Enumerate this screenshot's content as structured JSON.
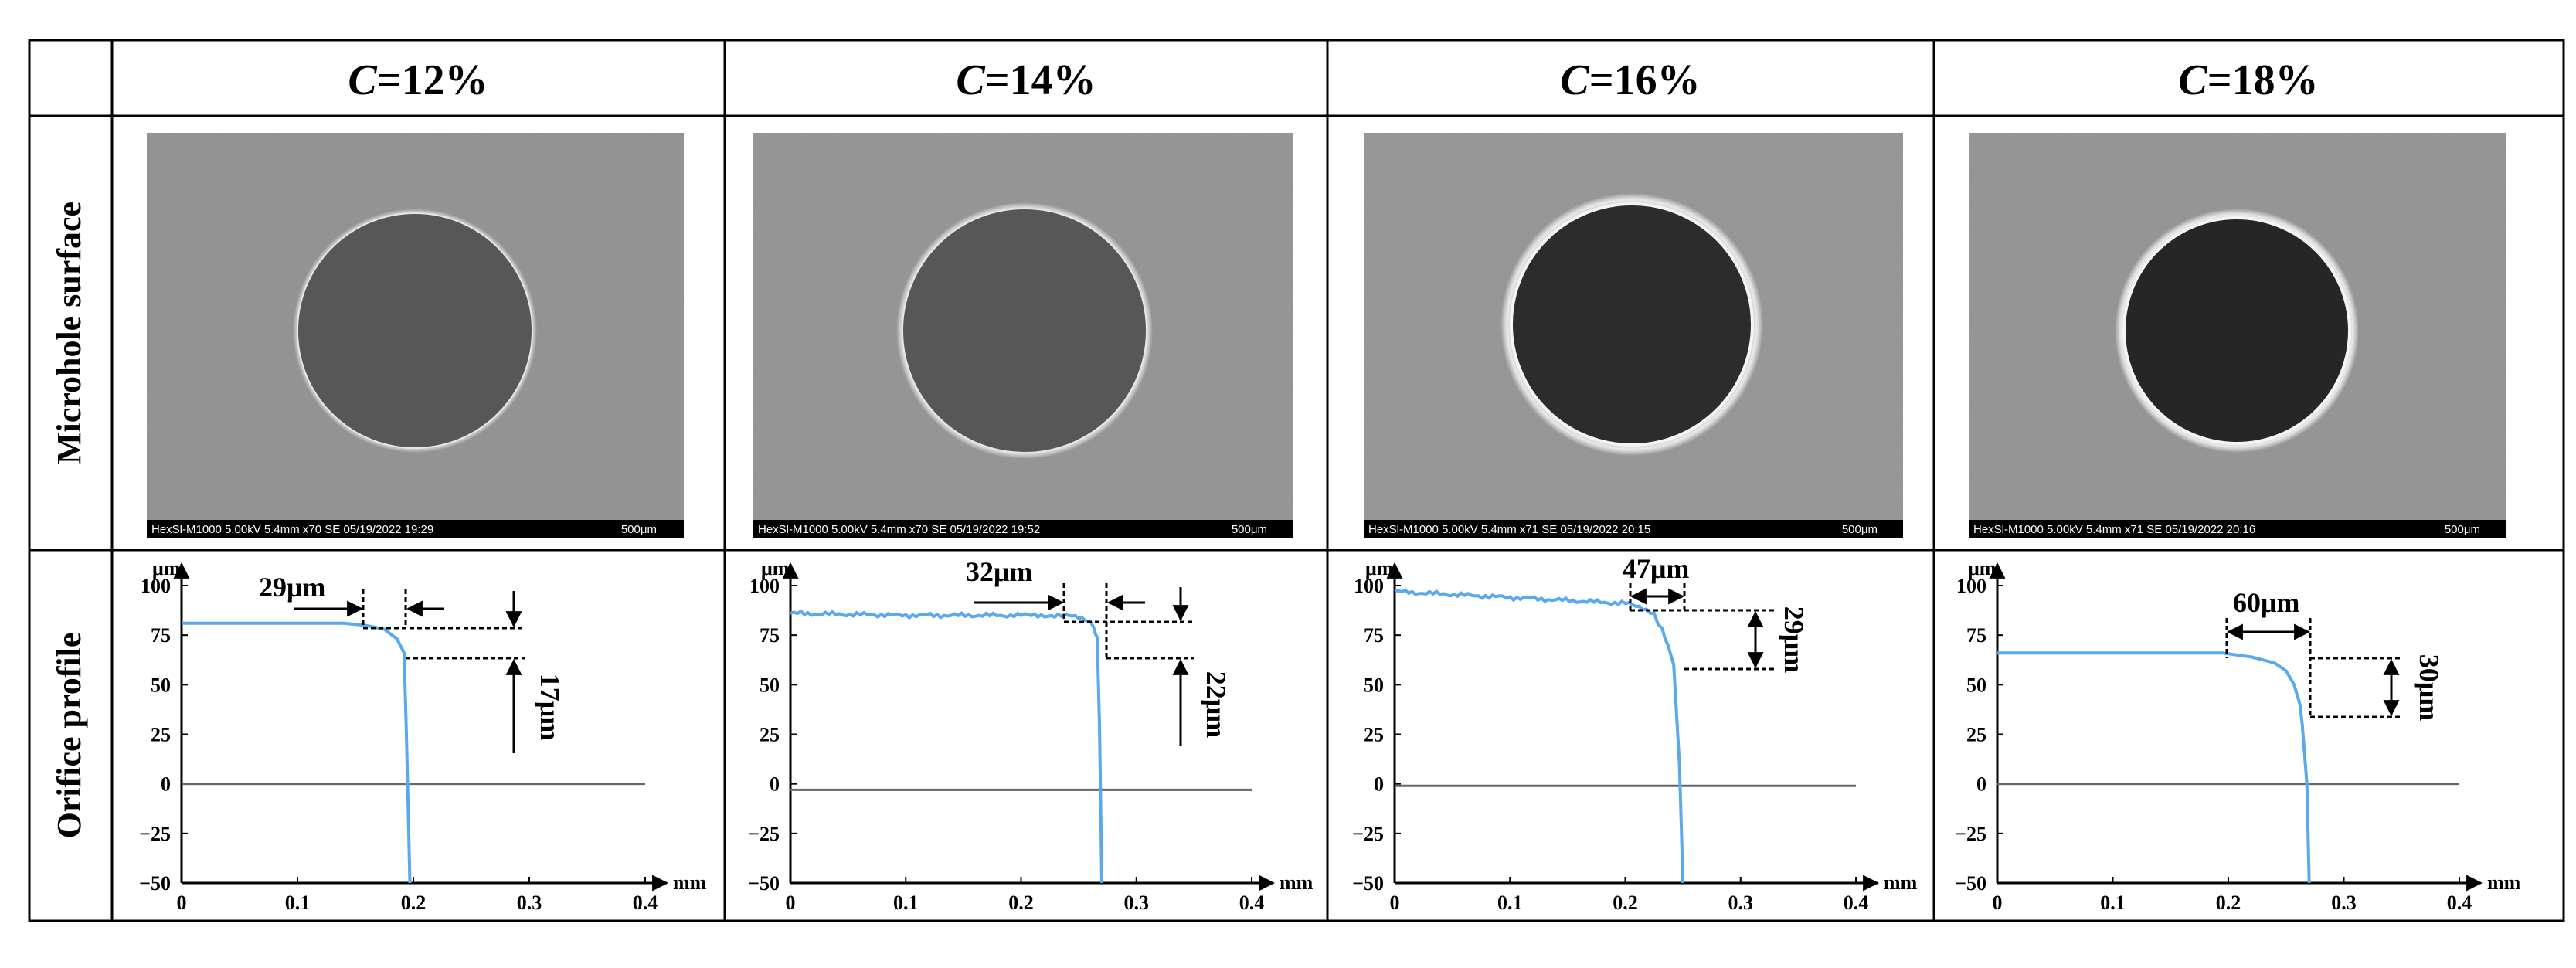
{
  "row_labels": {
    "microhole": "Microhole surface",
    "profile": "Orifice profile"
  },
  "panels": [
    {
      "c_var": "C",
      "c_val": "=12%",
      "sem_info": "HexSl-M1000 5.00kV 5.4mm x70 SE 05/19/2022 19:29",
      "sem_scale": "500μm",
      "width_label": "29μm",
      "height_label": "17μm"
    },
    {
      "c_var": "C",
      "c_val": "=14%",
      "sem_info": "HexSl-M1000 5.00kV 5.4mm x70 SE 05/19/2022 19:52",
      "sem_scale": "500μm",
      "width_label": "32μm",
      "height_label": "22μm"
    },
    {
      "c_var": "C",
      "c_val": "=16%",
      "sem_info": "HexSl-M1000 5.00kV 5.4mm x71 SE 05/19/2022 20:15",
      "sem_scale": "500μm",
      "width_label": "47μm",
      "height_label": "29μm"
    },
    {
      "c_var": "C",
      "c_val": "=18%",
      "sem_info": "HexSl-M1000 5.00kV 5.4mm x71 SE 05/19/2022 20:16",
      "sem_scale": "500μm",
      "width_label": "60μm",
      "height_label": "30μm"
    }
  ],
  "chart_data": [
    {
      "type": "line",
      "xlabel": "mm",
      "ylabel": "μm",
      "xlim": [
        0,
        0.4
      ],
      "ylim": [
        -50,
        100
      ],
      "x_ticks": [
        "0",
        "0.1",
        "0.2",
        "0.3",
        "0.4"
      ],
      "y_ticks": [
        "100",
        "75",
        "50",
        "25",
        "0",
        "−25",
        "−50"
      ],
      "baseline_y": 0,
      "line_color": "#5aa9ec",
      "noise": false,
      "series": [
        {
          "x": [
            0,
            0.14,
            0.158,
            0.175,
            0.186,
            0.192,
            0.194,
            0.197
          ],
          "y": [
            81,
            81,
            80,
            78,
            73,
            66,
            25,
            -50
          ]
        }
      ]
    },
    {
      "type": "line",
      "xlabel": "mm",
      "ylabel": "μm",
      "xlim": [
        0,
        0.4
      ],
      "ylim": [
        -50,
        100
      ],
      "x_ticks": [
        "0",
        "0.1",
        "0.2",
        "0.3",
        "0.4"
      ],
      "y_ticks": [
        "100",
        "75",
        "50",
        "25",
        "0",
        "−25",
        "−50"
      ],
      "baseline_y": -3,
      "line_color": "#5aa9ec",
      "noise": true,
      "series": [
        {
          "x": [
            0,
            0.1,
            0.2,
            0.235,
            0.25,
            0.258,
            0.263,
            0.266,
            0.268,
            0.27
          ],
          "y": [
            86,
            85,
            85,
            85,
            84,
            82,
            79,
            74,
            30,
            -50
          ]
        }
      ]
    },
    {
      "type": "line",
      "xlabel": "mm",
      "ylabel": "μm",
      "xlim": [
        0,
        0.4
      ],
      "ylim": [
        -50,
        100
      ],
      "x_ticks": [
        "0",
        "0.1",
        "0.2",
        "0.3",
        "0.4"
      ],
      "y_ticks": [
        "100",
        "75",
        "50",
        "25",
        "0",
        "−25",
        "−50"
      ],
      "baseline_y": -1,
      "line_color": "#5aa9ec",
      "noise": true,
      "series": [
        {
          "x": [
            0,
            0.1,
            0.2,
            0.215,
            0.225,
            0.232,
            0.237,
            0.242,
            0.247,
            0.25
          ],
          "y": [
            97,
            94,
            91,
            89,
            85,
            78,
            70,
            60,
            10,
            -50
          ]
        }
      ]
    },
    {
      "type": "line",
      "xlabel": "mm",
      "ylabel": "μm",
      "xlim": [
        0,
        0.4
      ],
      "ylim": [
        -50,
        100
      ],
      "x_ticks": [
        "0",
        "0.1",
        "0.2",
        "0.3",
        "0.4"
      ],
      "y_ticks": [
        "100",
        "75",
        "50",
        "25",
        "0",
        "−25",
        "−50"
      ],
      "baseline_y": 0,
      "line_color": "#5aa9ec",
      "noise": false,
      "series": [
        {
          "x": [
            0,
            0.195,
            0.22,
            0.24,
            0.25,
            0.257,
            0.262,
            0.264,
            0.266,
            0.268,
            0.27
          ],
          "y": [
            66,
            66,
            64,
            61,
            57,
            50,
            40,
            30,
            15,
            0,
            -50
          ]
        }
      ]
    }
  ]
}
